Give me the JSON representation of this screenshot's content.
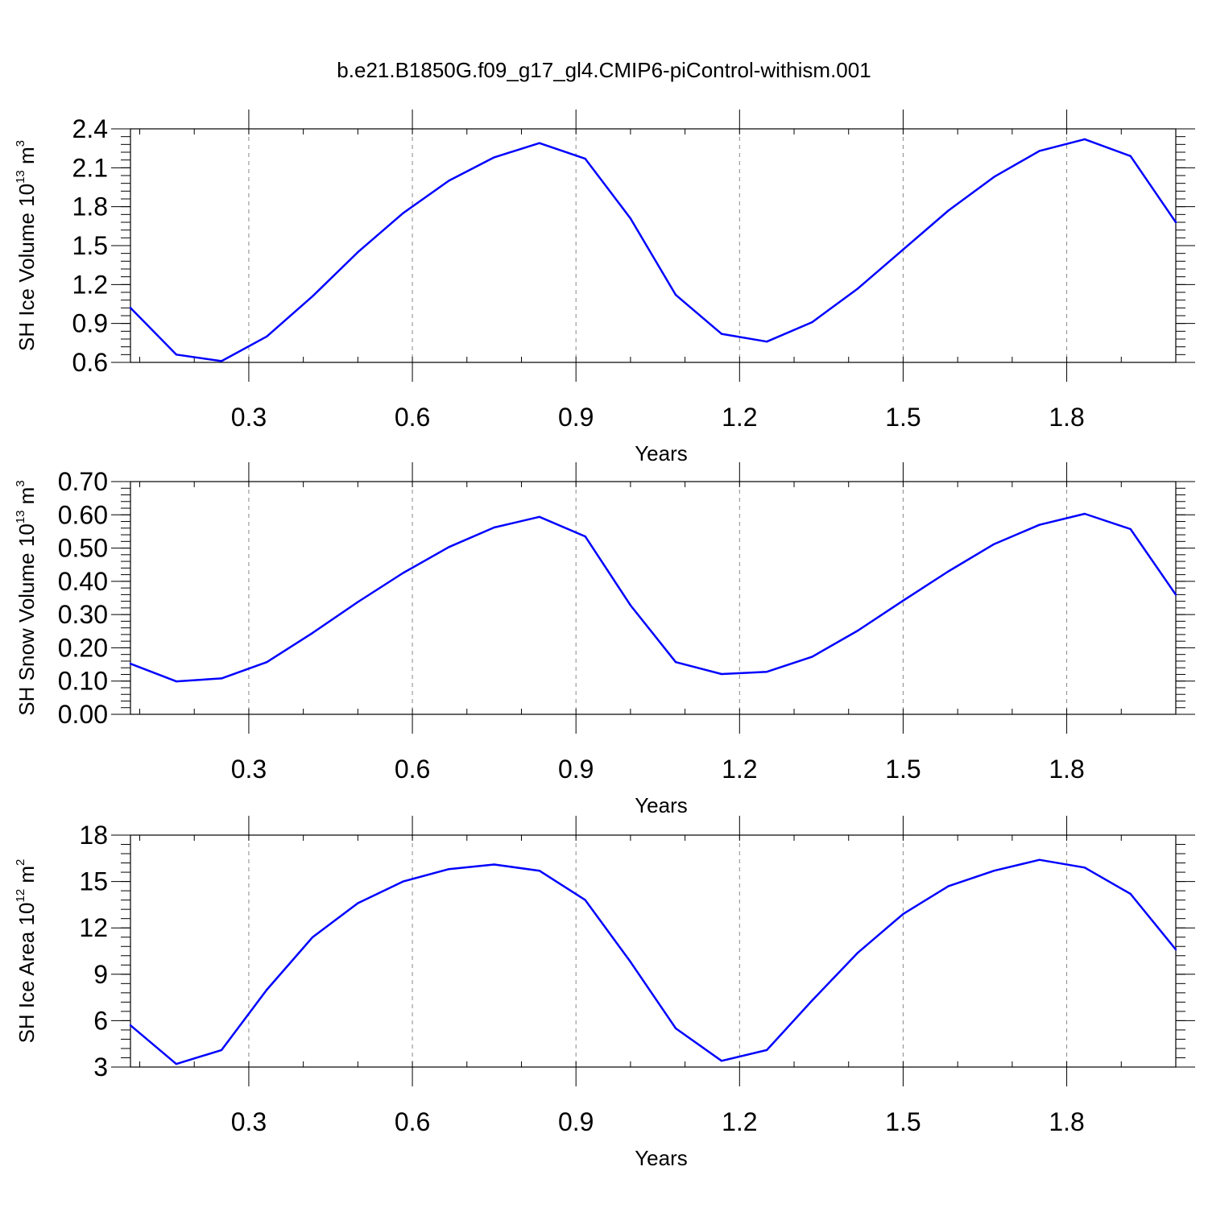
{
  "title": "b.e21.B1850G.f09_g17_gl4.CMIP6-piControl-withism.001",
  "colors": {
    "line": "#0000ff",
    "axis": "#000000",
    "grid": "#888888",
    "background": "#ffffff"
  },
  "chart_data": [
    {
      "type": "line",
      "ylabel": {
        "base": "SH Ice Volume 10",
        "sup": "13",
        "unit": " m",
        "unit_sup": "3"
      },
      "xlabel": "Years",
      "xlim": [
        0.083,
        2.0
      ],
      "ylim": [
        0.6,
        2.4
      ],
      "xticks": [
        0.3,
        0.6,
        0.9,
        1.2,
        1.5,
        1.8
      ],
      "xtick_labels": [
        "0.3",
        "0.6",
        "0.9",
        "1.2",
        "1.5",
        "1.8"
      ],
      "yticks": [
        0.6,
        0.9,
        1.2,
        1.5,
        1.8,
        2.1,
        2.4
      ],
      "ytick_labels": [
        "0.6",
        "0.9",
        "1.2",
        "1.5",
        "1.8",
        "2.1",
        "2.4"
      ],
      "grid": "vertical dashed",
      "series": [
        {
          "x": [
            0.083,
            0.167,
            0.25,
            0.333,
            0.417,
            0.5,
            0.583,
            0.667,
            0.75,
            0.833,
            0.917,
            1.0,
            1.083,
            1.167,
            1.25,
            1.333,
            1.417,
            1.5,
            1.583,
            1.667,
            1.75,
            1.833,
            1.917,
            2.0
          ],
          "values": [
            1.02,
            0.66,
            0.61,
            0.8,
            1.11,
            1.45,
            1.75,
            2.0,
            2.18,
            2.29,
            2.17,
            1.71,
            1.12,
            0.82,
            0.76,
            0.91,
            1.17,
            1.47,
            1.77,
            2.03,
            2.23,
            2.32,
            2.19,
            1.68
          ]
        }
      ]
    },
    {
      "type": "line",
      "ylabel": {
        "base": "SH Snow Volume 10",
        "sup": "13",
        "unit": " m",
        "unit_sup": "3"
      },
      "xlabel": "Years",
      "xlim": [
        0.083,
        2.0
      ],
      "ylim": [
        0.0,
        0.7
      ],
      "xticks": [
        0.3,
        0.6,
        0.9,
        1.2,
        1.5,
        1.8
      ],
      "xtick_labels": [
        "0.3",
        "0.6",
        "0.9",
        "1.2",
        "1.5",
        "1.8"
      ],
      "yticks": [
        0.0,
        0.1,
        0.2,
        0.3,
        0.4,
        0.5,
        0.6,
        0.7
      ],
      "ytick_labels": [
        "0.00",
        "0.10",
        "0.20",
        "0.30",
        "0.40",
        "0.50",
        "0.60",
        "0.70"
      ],
      "grid": "vertical dashed",
      "series": [
        {
          "x": [
            0.083,
            0.167,
            0.25,
            0.333,
            0.417,
            0.5,
            0.583,
            0.667,
            0.75,
            0.833,
            0.917,
            1.0,
            1.083,
            1.167,
            1.25,
            1.333,
            1.417,
            1.5,
            1.583,
            1.667,
            1.75,
            1.833,
            1.917,
            2.0
          ],
          "values": [
            0.152,
            0.099,
            0.108,
            0.157,
            0.245,
            0.338,
            0.425,
            0.503,
            0.562,
            0.594,
            0.535,
            0.328,
            0.157,
            0.121,
            0.128,
            0.173,
            0.252,
            0.342,
            0.43,
            0.512,
            0.57,
            0.603,
            0.557,
            0.36
          ]
        }
      ]
    },
    {
      "type": "line",
      "ylabel": {
        "base": "SH Ice Area 10",
        "sup": "12",
        "unit": " m",
        "unit_sup": "2"
      },
      "xlabel": "Years",
      "xlim": [
        0.083,
        2.0
      ],
      "ylim": [
        3,
        18
      ],
      "xticks": [
        0.3,
        0.6,
        0.9,
        1.2,
        1.5,
        1.8
      ],
      "xtick_labels": [
        "0.3",
        "0.6",
        "0.9",
        "1.2",
        "1.5",
        "1.8"
      ],
      "yticks": [
        3,
        6,
        9,
        12,
        15,
        18
      ],
      "ytick_labels": [
        "3",
        "6",
        "9",
        "12",
        "15",
        "18"
      ],
      "grid": "vertical dashed",
      "series": [
        {
          "x": [
            0.083,
            0.167,
            0.25,
            0.333,
            0.417,
            0.5,
            0.583,
            0.667,
            0.75,
            0.833,
            0.917,
            1.0,
            1.083,
            1.167,
            1.25,
            1.333,
            1.417,
            1.5,
            1.583,
            1.667,
            1.75,
            1.833,
            1.917,
            2.0
          ],
          "values": [
            5.7,
            3.2,
            4.1,
            8.0,
            11.4,
            13.6,
            15.0,
            15.8,
            16.1,
            15.7,
            13.8,
            9.8,
            5.5,
            3.4,
            4.1,
            7.3,
            10.4,
            12.9,
            14.7,
            15.7,
            16.4,
            15.9,
            14.2,
            10.6
          ]
        }
      ]
    }
  ]
}
